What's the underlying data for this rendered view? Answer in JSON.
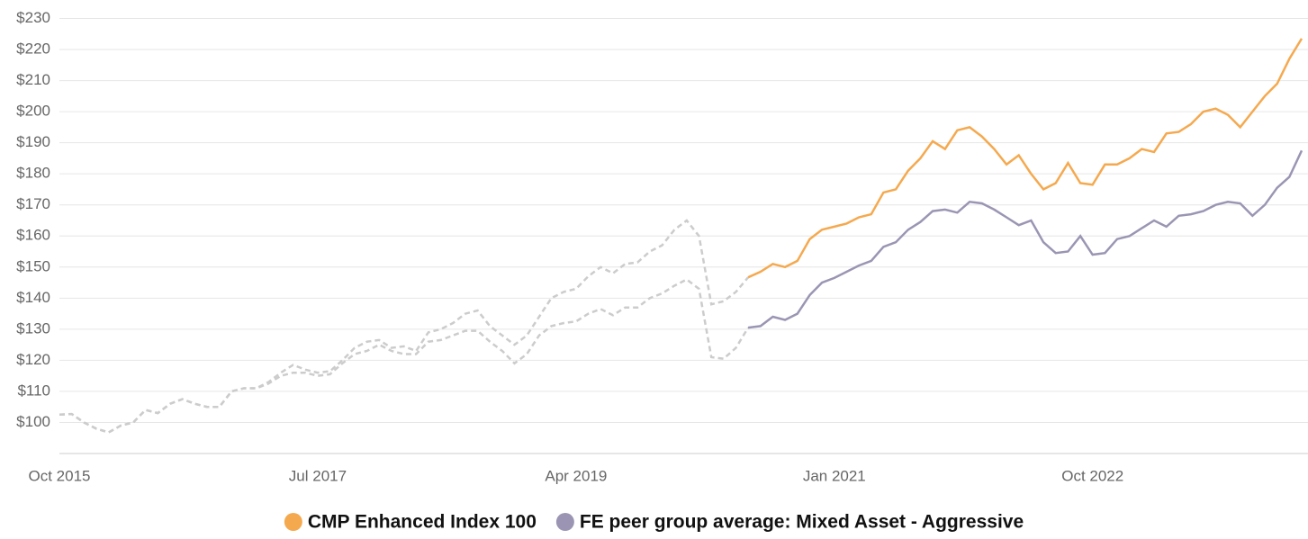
{
  "chart_data": {
    "type": "line",
    "x": [
      "2015-10",
      "2015-11",
      "2015-12",
      "2016-01",
      "2016-02",
      "2016-03",
      "2016-04",
      "2016-05",
      "2016-06",
      "2016-07",
      "2016-08",
      "2016-09",
      "2016-10",
      "2016-11",
      "2016-12",
      "2017-01",
      "2017-02",
      "2017-03",
      "2017-04",
      "2017-05",
      "2017-06",
      "2017-07",
      "2017-08",
      "2017-09",
      "2017-10",
      "2017-11",
      "2017-12",
      "2018-01",
      "2018-02",
      "2018-03",
      "2018-04",
      "2018-05",
      "2018-06",
      "2018-07",
      "2018-08",
      "2018-09",
      "2018-10",
      "2018-11",
      "2018-12",
      "2019-01",
      "2019-02",
      "2019-03",
      "2019-04",
      "2019-05",
      "2019-06",
      "2019-07",
      "2019-08",
      "2019-09",
      "2019-10",
      "2019-11",
      "2019-12",
      "2020-01",
      "2020-02",
      "2020-03",
      "2020-04",
      "2020-05",
      "2020-06",
      "2020-07",
      "2020-08",
      "2020-09",
      "2020-10",
      "2020-11",
      "2020-12",
      "2021-01",
      "2021-02",
      "2021-03",
      "2021-04",
      "2021-05",
      "2021-06",
      "2021-07",
      "2021-08",
      "2021-09",
      "2021-10",
      "2021-11",
      "2021-12",
      "2022-01",
      "2022-02",
      "2022-03",
      "2022-04",
      "2022-05",
      "2022-06",
      "2022-07",
      "2022-08",
      "2022-09",
      "2022-10",
      "2022-11",
      "2022-12",
      "2023-01",
      "2023-02",
      "2023-03",
      "2023-04",
      "2023-05",
      "2023-06",
      "2023-07",
      "2023-08",
      "2023-09",
      "2023-10",
      "2023-11",
      "2023-12",
      "2024-01",
      "2024-02",
      "2024-03"
    ],
    "series": [
      {
        "name": "CMP Enhanced Index 100",
        "color": "#f5a94f",
        "values": [
          102.5,
          102.7,
          100,
          98,
          96.8,
          99,
          100,
          104,
          103,
          106,
          107.5,
          106,
          105,
          105,
          110,
          111,
          111,
          113,
          116,
          118.5,
          117,
          116,
          116.5,
          120,
          124,
          126,
          126.5,
          124,
          124.5,
          123,
          129,
          130,
          132,
          135,
          136,
          131,
          128,
          125,
          128,
          134,
          140,
          142,
          143,
          147,
          150,
          148,
          151,
          151.5,
          155,
          157,
          162,
          165,
          160,
          138,
          139,
          142,
          146.7,
          148.5,
          151,
          150,
          152,
          159,
          162,
          163,
          164,
          166,
          167,
          174,
          175,
          181,
          185,
          190.5,
          188,
          194,
          195,
          192,
          188,
          183,
          186,
          180,
          175,
          177,
          183.5,
          177,
          176.5,
          183,
          183,
          185,
          188,
          187,
          193,
          193.5,
          196,
          200,
          201,
          199,
          195,
          200,
          205,
          209,
          217,
          223.5
        ]
      },
      {
        "name": "FE peer group average: Mixed Asset - Aggressive",
        "color": "#9b95b3",
        "values": [
          102.5,
          102.7,
          100,
          98,
          96.8,
          99,
          100,
          104,
          103,
          106,
          107.5,
          106,
          105,
          105,
          110,
          111,
          111,
          112.5,
          115,
          116,
          116,
          115,
          115.5,
          119,
          122,
          123,
          125,
          123,
          122,
          122,
          126,
          126.5,
          128,
          129.5,
          129.5,
          126,
          123,
          119,
          122,
          128,
          131,
          132,
          132.5,
          135,
          136.5,
          134.5,
          137,
          137,
          140,
          141.5,
          144,
          146,
          143,
          121,
          120.5,
          124,
          130.5,
          131,
          134,
          133,
          135,
          141,
          145,
          146.5,
          148.5,
          150.5,
          152,
          156.5,
          158,
          162,
          164.5,
          168,
          168.5,
          167.5,
          171,
          170.5,
          168.5,
          166,
          163.5,
          165,
          158,
          154.5,
          155,
          160,
          154,
          154.5,
          159,
          160,
          162.5,
          165,
          163,
          166.5,
          167,
          168,
          170,
          171,
          170.5,
          166.5,
          170,
          175.5,
          179,
          187.5
        ]
      }
    ],
    "solid_from": "2020-06",
    "history_color": "#cccccc",
    "xticks": [
      {
        "value": "2015-10",
        "label": "Oct 2015"
      },
      {
        "value": "2017-07",
        "label": "Jul 2017"
      },
      {
        "value": "2019-04",
        "label": "Apr 2019"
      },
      {
        "value": "2021-01",
        "label": "Jan 2021"
      },
      {
        "value": "2022-10",
        "label": "Oct 2022"
      }
    ],
    "ylim": [
      90,
      230
    ],
    "yticks": [
      {
        "value": 100,
        "label": "$100"
      },
      {
        "value": 110,
        "label": "$110"
      },
      {
        "value": 120,
        "label": "$120"
      },
      {
        "value": 130,
        "label": "$130"
      },
      {
        "value": 140,
        "label": "$140"
      },
      {
        "value": 150,
        "label": "$150"
      },
      {
        "value": 160,
        "label": "$160"
      },
      {
        "value": 170,
        "label": "$170"
      },
      {
        "value": 180,
        "label": "$180"
      },
      {
        "value": 190,
        "label": "$190"
      },
      {
        "value": 200,
        "label": "$200"
      },
      {
        "value": 210,
        "label": "$210"
      },
      {
        "value": 220,
        "label": "$220"
      },
      {
        "value": 230,
        "label": "$230"
      }
    ],
    "grid": true,
    "legend": "bottom"
  }
}
